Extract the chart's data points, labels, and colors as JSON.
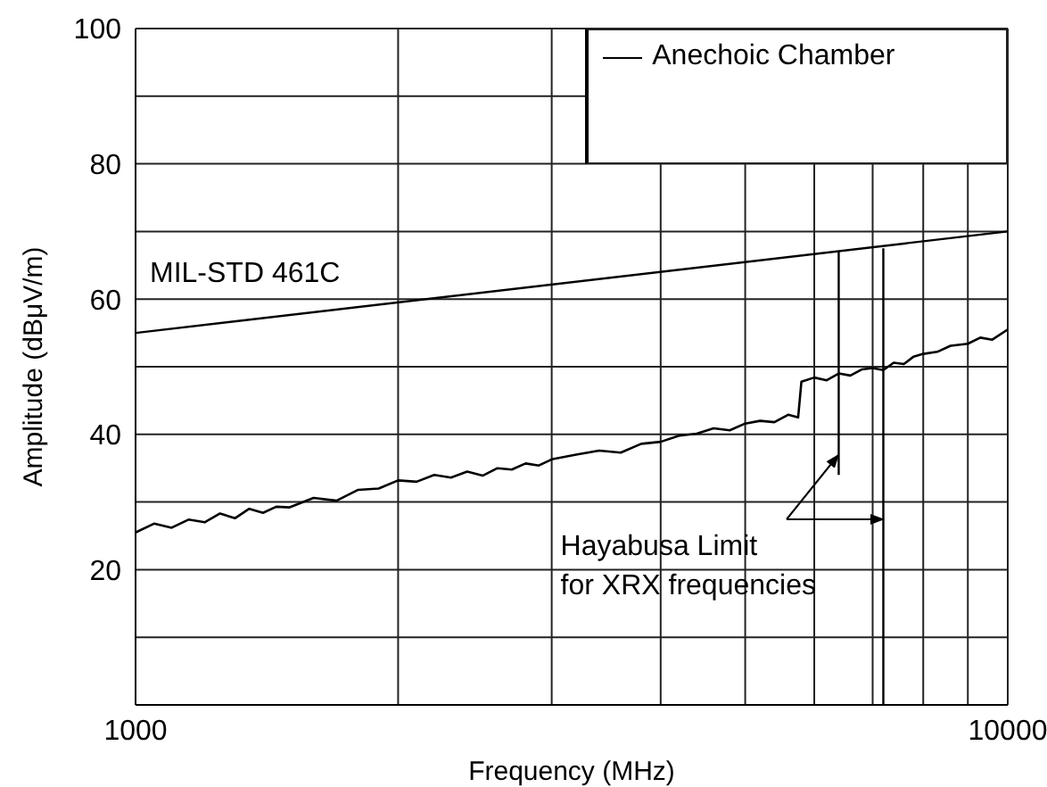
{
  "chart_data": {
    "type": "line",
    "xlabel": "Frequency (MHz)",
    "ylabel": "Amplitude (dBμV/m)",
    "log": "x",
    "xlim": [
      1000,
      10000
    ],
    "xticks": [
      1000,
      {
        "value": 2000,
        "label": null
      },
      {
        "value": 3000,
        "label": null
      },
      {
        "value": 4000,
        "label": null
      },
      {
        "value": 5000,
        "label": null
      },
      {
        "value": 6000,
        "label": null
      },
      {
        "value": 7000,
        "label": null
      },
      {
        "value": 8000,
        "label": null
      },
      {
        "value": 9000,
        "label": null
      },
      10000
    ],
    "ylim": [
      0,
      100
    ],
    "yticks": [
      {
        "value": 0,
        "label": null
      },
      {
        "value": 10,
        "label": null
      },
      20,
      {
        "value": 30,
        "label": null
      },
      40,
      {
        "value": 50,
        "label": null
      },
      60,
      {
        "value": 70,
        "label": null
      },
      80,
      {
        "value": 90,
        "label": null
      },
      100
    ],
    "grid": true,
    "legend": "top right",
    "marker": "none",
    "line_style": "solid",
    "annotations": [
      {
        "text": "Hayabusa Limit\nfor XRX frequencies",
        "x": 6400,
        "y": 37
      }
    ],
    "series": [
      {
        "name": "Anechoic Chamber",
        "color": "#000000",
        "x": [
          1000,
          1050,
          1100,
          1150,
          1200,
          1250,
          1300,
          1350,
          1400,
          1450,
          1500,
          1600,
          1700,
          1800,
          1900,
          2000,
          2100,
          2200,
          2300,
          2400,
          2500,
          2600,
          2700,
          2800,
          2900,
          3000,
          3200,
          3400,
          3600,
          3800,
          4000,
          4200,
          4400,
          4600,
          4800,
          5000,
          5200,
          5400,
          5600,
          5750,
          5800,
          6000,
          6200,
          6400,
          6600,
          6800,
          7000,
          7200,
          7400,
          7600,
          7800,
          8000,
          8300,
          8600,
          9000,
          9300,
          9600,
          10000
        ],
        "values": [
          25.5,
          26.8,
          26.2,
          27.4,
          27.0,
          28.3,
          27.6,
          29.0,
          28.4,
          29.3,
          29.2,
          30.6,
          30.2,
          31.8,
          32.0,
          33.2,
          33.0,
          34.0,
          33.6,
          34.5,
          33.9,
          35.0,
          34.8,
          35.7,
          35.4,
          36.3,
          37.0,
          37.6,
          37.3,
          38.6,
          38.9,
          39.8,
          40.1,
          40.9,
          40.6,
          41.6,
          42.0,
          41.8,
          42.9,
          42.5,
          47.8,
          48.4,
          48.0,
          49.0,
          48.7,
          49.6,
          49.8,
          49.5,
          50.6,
          50.4,
          51.5,
          51.9,
          52.2,
          53.1,
          53.4,
          54.3,
          54.0,
          55.5
        ]
      },
      {
        "name": "MIL-STD 461C",
        "color": "#000000",
        "x": [
          1000,
          10000
        ],
        "values": [
          55,
          70
        ]
      },
      {
        "color": "#000000",
        "x": [
          6400,
          6400
        ],
        "values": [
          67,
          34
        ]
      },
      {
        "color": "#000000",
        "x": [
          7200,
          7200
        ],
        "values": [
          67.5,
          0
        ]
      }
    ]
  }
}
